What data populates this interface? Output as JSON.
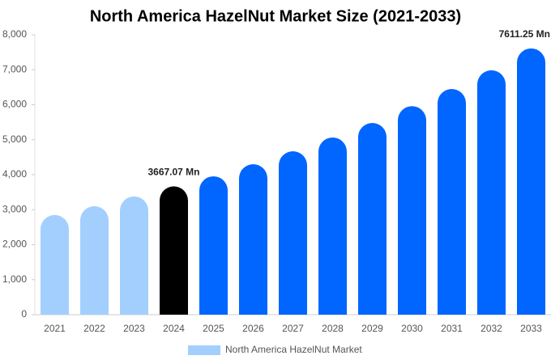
{
  "chart_data": {
    "type": "bar",
    "title": "North America HazelNut Market Size (2021-2033)",
    "categories": [
      "2021",
      "2022",
      "2023",
      "2024",
      "2025",
      "2026",
      "2027",
      "2028",
      "2029",
      "2030",
      "2031",
      "2032",
      "2033"
    ],
    "series": [
      {
        "name": "North America HazelNut Market",
        "color": "#a3cfff",
        "values": [
          2850,
          3100,
          3380,
          3667.07,
          3955,
          4300,
          4670,
          5065,
          5480,
          5960,
          6450,
          6985,
          7611.25
        ],
        "value_labels": [
          null,
          null,
          null,
          "3667.07 Mn",
          null,
          null,
          null,
          null,
          null,
          null,
          null,
          null,
          "7611.25 Mn"
        ],
        "colors": [
          "#a3cfff",
          "#a3cfff",
          "#a3cfff",
          "#000000",
          "#0066ff",
          "#0066ff",
          "#0066ff",
          "#0066ff",
          "#0066ff",
          "#0066ff",
          "#0066ff",
          "#0066ff",
          "#0066ff"
        ]
      }
    ],
    "ylim": [
      0,
      8000
    ],
    "yticks": [
      0,
      {
        "value": 1000,
        "label": "1,000"
      },
      {
        "value": 2000,
        "label": "2,000"
      },
      {
        "value": 3000,
        "label": "3,000"
      },
      {
        "value": 4000,
        "label": "4,000"
      },
      {
        "value": 5000,
        "label": "5,000"
      },
      {
        "value": 6000,
        "label": "6,000"
      },
      {
        "value": 7000,
        "label": "7,000"
      },
      {
        "value": 8000,
        "label": "8,000"
      }
    ],
    "grid": false,
    "legend": "bottom"
  }
}
